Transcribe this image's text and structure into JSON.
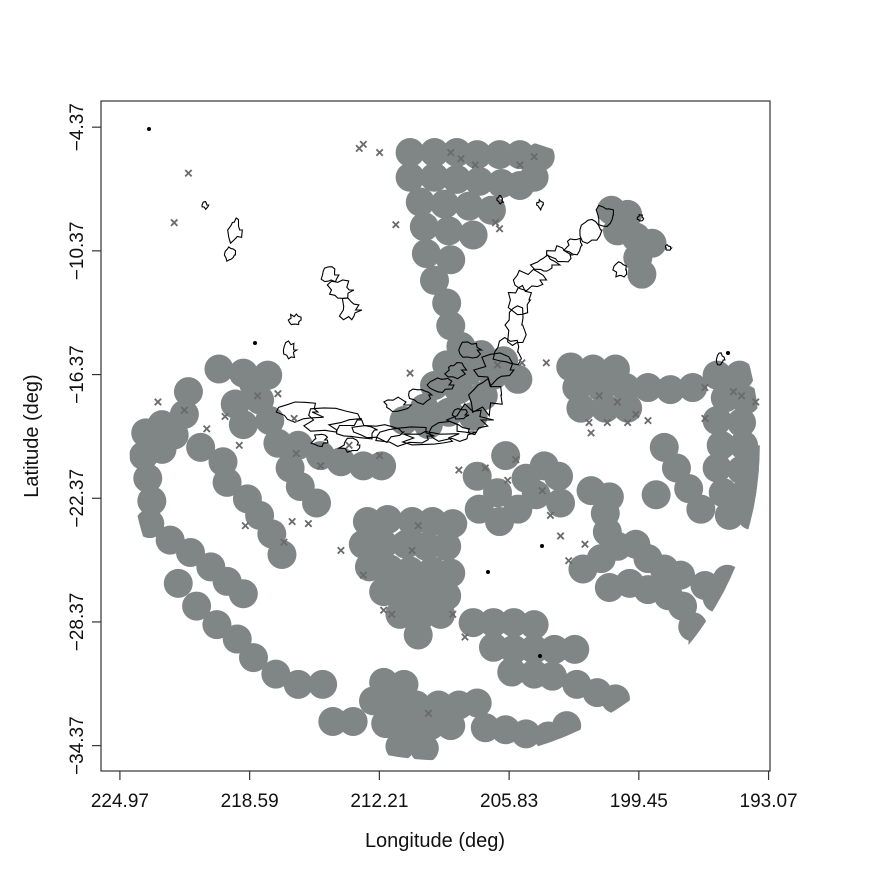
{
  "chart_data": {
    "type": "scatter",
    "title": "",
    "xlabel": "Longitude (deg)",
    "ylabel": "Latitude (deg)",
    "x_reversed": true,
    "xlim": [
      225.9,
      193.0
    ],
    "ylim": [
      -35.6,
      -3.1
    ],
    "x_ticks": [
      "224.97",
      "218.59",
      "212.21",
      "205.83",
      "199.45",
      "193.07"
    ],
    "y_ticks": [
      "-4.37",
      "-10.37",
      "-16.37",
      "-22.37",
      "-28.37",
      "-34.37"
    ],
    "grid": false,
    "legend": "none",
    "colors": {
      "coverage": "#7f8685",
      "marker": "#6a6a6a",
      "contour": "#000000"
    },
    "coverage_disk": {
      "center": [
        209.0,
        -19.8
      ],
      "radius_deg": 15.5
    },
    "series": [
      {
        "kind": "coverage",
        "points": [
          [
            210.7,
            -5.6
          ],
          [
            209.5,
            -5.6
          ],
          [
            208.4,
            -5.6
          ],
          [
            207.4,
            -5.7
          ],
          [
            206.3,
            -5.7
          ],
          [
            205.3,
            -5.7
          ],
          [
            204.3,
            -5.8
          ],
          [
            210.7,
            -6.8
          ],
          [
            209.5,
            -6.8
          ],
          [
            208.4,
            -6.9
          ],
          [
            207.3,
            -7.0
          ],
          [
            206.2,
            -7.1
          ],
          [
            205.3,
            -7.2
          ],
          [
            204.6,
            -6.8
          ],
          [
            210.2,
            -8.0
          ],
          [
            209.0,
            -8.1
          ],
          [
            207.8,
            -8.2
          ],
          [
            206.7,
            -8.4
          ],
          [
            210.0,
            -9.2
          ],
          [
            208.8,
            -9.4
          ],
          [
            207.6,
            -9.6
          ],
          [
            209.9,
            -10.5
          ],
          [
            208.7,
            -10.8
          ],
          [
            209.5,
            -11.8
          ],
          [
            208.9,
            -12.9
          ],
          [
            208.7,
            -14.0
          ],
          [
            208.2,
            -15.0
          ],
          [
            207.2,
            -15.4
          ],
          [
            206.1,
            -15.7
          ],
          [
            208.9,
            -15.9
          ],
          [
            207.8,
            -16.2
          ],
          [
            206.6,
            -16.4
          ],
          [
            205.4,
            -16.6
          ],
          [
            209.5,
            -16.9
          ],
          [
            208.3,
            -17.1
          ],
          [
            207.1,
            -17.4
          ],
          [
            210.0,
            -18.0
          ],
          [
            208.8,
            -18.2
          ],
          [
            207.6,
            -18.4
          ],
          [
            211.0,
            -18.6
          ],
          [
            209.8,
            -18.8
          ],
          [
            202.8,
            -16.0
          ],
          [
            201.7,
            -16.1
          ],
          [
            200.6,
            -16.1
          ],
          [
            202.5,
            -17.0
          ],
          [
            201.3,
            -17.0
          ],
          [
            200.1,
            -17.0
          ],
          [
            199.0,
            -17.0
          ],
          [
            197.9,
            -17.1
          ],
          [
            196.8,
            -17.0
          ],
          [
            202.3,
            -18.0
          ],
          [
            201.1,
            -18.0
          ],
          [
            200.0,
            -18.0
          ],
          [
            195.6,
            -16.4
          ],
          [
            194.5,
            -16.4
          ],
          [
            195.2,
            -17.5
          ],
          [
            194.2,
            -17.6
          ],
          [
            195.6,
            -18.6
          ],
          [
            194.4,
            -18.7
          ],
          [
            195.4,
            -19.8
          ],
          [
            194.3,
            -19.8
          ],
          [
            193.5,
            -20.5
          ],
          [
            195.6,
            -20.9
          ],
          [
            194.4,
            -21.0
          ],
          [
            193.5,
            -21.6
          ],
          [
            195.3,
            -22.1
          ],
          [
            194.2,
            -22.1
          ],
          [
            193.5,
            -22.7
          ],
          [
            195.0,
            -23.2
          ],
          [
            193.9,
            -23.2
          ],
          [
            198.2,
            -19.9
          ],
          [
            197.6,
            -20.9
          ],
          [
            197.0,
            -21.9
          ],
          [
            196.4,
            -22.9
          ],
          [
            198.6,
            -22.2
          ],
          [
            200.8,
            -8.4
          ],
          [
            200.0,
            -8.6
          ],
          [
            200.5,
            -9.4
          ],
          [
            199.6,
            -9.7
          ],
          [
            198.8,
            -10.0
          ],
          [
            199.5,
            -10.7
          ],
          [
            199.3,
            -11.5
          ],
          [
            223.8,
            -20.3
          ],
          [
            223.6,
            -21.4
          ],
          [
            223.4,
            -22.5
          ],
          [
            223.7,
            -19.2
          ],
          [
            222.9,
            -20.0
          ],
          [
            222.9,
            -18.8
          ],
          [
            221.8,
            -18.3
          ],
          [
            221.6,
            -17.2
          ],
          [
            222.3,
            -19.3
          ],
          [
            221.0,
            -19.9
          ],
          [
            219.9,
            -20.6
          ],
          [
            219.7,
            -21.6
          ],
          [
            218.7,
            -22.4
          ],
          [
            218.1,
            -23.2
          ],
          [
            217.5,
            -24.1
          ],
          [
            217.0,
            -25.1
          ],
          [
            219.3,
            -17.8
          ],
          [
            218.9,
            -18.8
          ],
          [
            218.4,
            -16.8
          ],
          [
            218.1,
            -17.6
          ],
          [
            217.6,
            -18.6
          ],
          [
            217.2,
            -19.7
          ],
          [
            216.6,
            -20.9
          ],
          [
            216.1,
            -21.8
          ],
          [
            215.3,
            -22.6
          ],
          [
            220.1,
            -16.1
          ],
          [
            218.9,
            -16.3
          ],
          [
            217.7,
            -16.4
          ],
          [
            216.2,
            -19.8
          ],
          [
            215.1,
            -20.3
          ],
          [
            214.1,
            -20.6
          ],
          [
            213.0,
            -20.8
          ],
          [
            212.1,
            -20.8
          ],
          [
            223.5,
            -23.6
          ],
          [
            222.5,
            -24.4
          ],
          [
            221.5,
            -25.0
          ],
          [
            220.5,
            -25.7
          ],
          [
            219.7,
            -26.4
          ],
          [
            218.9,
            -27.0
          ],
          [
            222.1,
            -26.5
          ],
          [
            221.2,
            -27.6
          ],
          [
            220.2,
            -28.5
          ],
          [
            219.2,
            -29.2
          ],
          [
            218.4,
            -30.1
          ],
          [
            217.3,
            -30.9
          ],
          [
            216.2,
            -31.4
          ],
          [
            215.0,
            -31.4
          ],
          [
            212.8,
            -23.5
          ],
          [
            211.8,
            -23.4
          ],
          [
            210.6,
            -23.5
          ],
          [
            209.6,
            -23.5
          ],
          [
            208.6,
            -23.6
          ],
          [
            213.0,
            -24.6
          ],
          [
            212.0,
            -24.6
          ],
          [
            210.9,
            -24.6
          ],
          [
            209.9,
            -24.7
          ],
          [
            208.9,
            -24.7
          ],
          [
            212.7,
            -25.7
          ],
          [
            211.7,
            -25.8
          ],
          [
            210.7,
            -25.9
          ],
          [
            209.6,
            -25.9
          ],
          [
            208.7,
            -26.0
          ],
          [
            212.0,
            -26.9
          ],
          [
            211.0,
            -27.0
          ],
          [
            209.9,
            -27.0
          ],
          [
            208.9,
            -27.1
          ],
          [
            211.2,
            -28.0
          ],
          [
            210.2,
            -28.1
          ],
          [
            209.2,
            -28.0
          ],
          [
            210.3,
            -29.0
          ],
          [
            212.0,
            -31.3
          ],
          [
            211.0,
            -31.4
          ],
          [
            212.5,
            -32.2
          ],
          [
            211.4,
            -32.4
          ],
          [
            210.4,
            -32.4
          ],
          [
            209.3,
            -32.4
          ],
          [
            208.3,
            -32.4
          ],
          [
            207.4,
            -32.3
          ],
          [
            211.9,
            -33.3
          ],
          [
            210.8,
            -33.5
          ],
          [
            209.7,
            -33.4
          ],
          [
            208.7,
            -33.4
          ],
          [
            213.5,
            -33.2
          ],
          [
            214.5,
            -33.2
          ],
          [
            211.2,
            -34.4
          ],
          [
            210.0,
            -34.5
          ],
          [
            207.6,
            -28.4
          ],
          [
            206.6,
            -28.4
          ],
          [
            205.6,
            -28.4
          ],
          [
            204.6,
            -28.5
          ],
          [
            206.6,
            -29.6
          ],
          [
            205.6,
            -29.7
          ],
          [
            204.6,
            -29.7
          ],
          [
            203.6,
            -29.7
          ],
          [
            202.6,
            -29.7
          ],
          [
            205.7,
            -30.8
          ],
          [
            204.6,
            -30.9
          ],
          [
            203.7,
            -31.0
          ],
          [
            202.5,
            -31.4
          ],
          [
            201.5,
            -31.8
          ],
          [
            200.6,
            -32.1
          ],
          [
            207.0,
            -33.5
          ],
          [
            206.0,
            -33.6
          ],
          [
            205.0,
            -33.8
          ],
          [
            203.9,
            -33.9
          ],
          [
            203.0,
            -33.4
          ],
          [
            202.2,
            -25.8
          ],
          [
            201.3,
            -25.3
          ],
          [
            200.5,
            -24.7
          ],
          [
            199.6,
            -24.6
          ],
          [
            199.0,
            -25.3
          ],
          [
            198.2,
            -25.8
          ],
          [
            197.4,
            -26.1
          ],
          [
            200.9,
            -26.7
          ],
          [
            199.9,
            -26.5
          ],
          [
            199.0,
            -26.8
          ],
          [
            198.0,
            -27.1
          ],
          [
            197.3,
            -27.6
          ],
          [
            196.8,
            -28.6
          ],
          [
            196.3,
            -29.4
          ],
          [
            196.2,
            -26.6
          ],
          [
            195.1,
            -26.3
          ],
          [
            195.6,
            -27.2
          ],
          [
            205.0,
            -21.4
          ],
          [
            204.1,
            -20.8
          ],
          [
            203.4,
            -21.3
          ],
          [
            204.5,
            -22.2
          ],
          [
            205.4,
            -22.9
          ],
          [
            206.3,
            -23.5
          ],
          [
            206.4,
            -22.1
          ],
          [
            207.3,
            -22.9
          ],
          [
            207.4,
            -21.3
          ],
          [
            206.0,
            -20.3
          ],
          [
            203.3,
            -22.6
          ],
          [
            201.8,
            -22.0
          ],
          [
            201.1,
            -23.1
          ],
          [
            201.0,
            -24.0
          ],
          [
            200.9,
            -22.3
          ]
        ]
      },
      {
        "kind": "stations",
        "marker": "x",
        "points": [
          [
            213.2,
            -5.4
          ],
          [
            213.0,
            -5.2
          ],
          [
            212.2,
            -5.6
          ],
          [
            208.7,
            -5.6
          ],
          [
            207.5,
            -6.2
          ],
          [
            205.3,
            -6.2
          ],
          [
            208.2,
            -5.9
          ],
          [
            204.6,
            -5.8
          ],
          [
            221.6,
            -6.6
          ],
          [
            222.3,
            -9.0
          ],
          [
            211.4,
            -9.1
          ],
          [
            206.5,
            -9.0
          ],
          [
            206.3,
            -9.3
          ],
          [
            210.7,
            -16.3
          ],
          [
            206.4,
            -15.9
          ],
          [
            205.2,
            -15.8
          ],
          [
            204.0,
            -15.8
          ],
          [
            200.5,
            -17.7
          ],
          [
            201.4,
            -17.4
          ],
          [
            201.9,
            -18.7
          ],
          [
            201.0,
            -18.7
          ],
          [
            200.0,
            -18.7
          ],
          [
            196.2,
            -17.0
          ],
          [
            196.2,
            -18.5
          ],
          [
            194.8,
            -17.2
          ],
          [
            194.4,
            -17.4
          ],
          [
            193.7,
            -17.7
          ],
          [
            223.1,
            -17.7
          ],
          [
            221.8,
            -18.1
          ],
          [
            220.7,
            -19.0
          ],
          [
            219.1,
            -19.8
          ],
          [
            219.8,
            -18.4
          ],
          [
            218.2,
            -17.4
          ],
          [
            217.2,
            -17.3
          ],
          [
            216.4,
            -18.5
          ],
          [
            215.1,
            -20.8
          ],
          [
            216.3,
            -20.2
          ],
          [
            213.7,
            -19.8
          ],
          [
            212.2,
            -20.3
          ],
          [
            218.8,
            -23.7
          ],
          [
            216.5,
            -23.5
          ],
          [
            216.9,
            -24.5
          ],
          [
            215.7,
            -23.6
          ],
          [
            214.1,
            -24.9
          ],
          [
            213.0,
            -26.1
          ],
          [
            212.0,
            -27.8
          ],
          [
            211.6,
            -28.0
          ],
          [
            210.6,
            -24.9
          ],
          [
            208.6,
            -28.0
          ],
          [
            208.0,
            -29.1
          ],
          [
            209.8,
            -32.8
          ],
          [
            210.3,
            -23.7
          ],
          [
            208.3,
            -21.0
          ],
          [
            207.0,
            -20.9
          ],
          [
            205.5,
            -20.5
          ],
          [
            205.9,
            -21.5
          ],
          [
            204.2,
            -22.0
          ],
          [
            203.8,
            -23.2
          ],
          [
            202.1,
            -24.6
          ],
          [
            202.9,
            -25.4
          ],
          [
            203.3,
            -24.2
          ],
          [
            201.8,
            -19.2
          ],
          [
            199.6,
            -18.3
          ],
          [
            199.0,
            -18.6
          ]
        ]
      }
    ]
  }
}
